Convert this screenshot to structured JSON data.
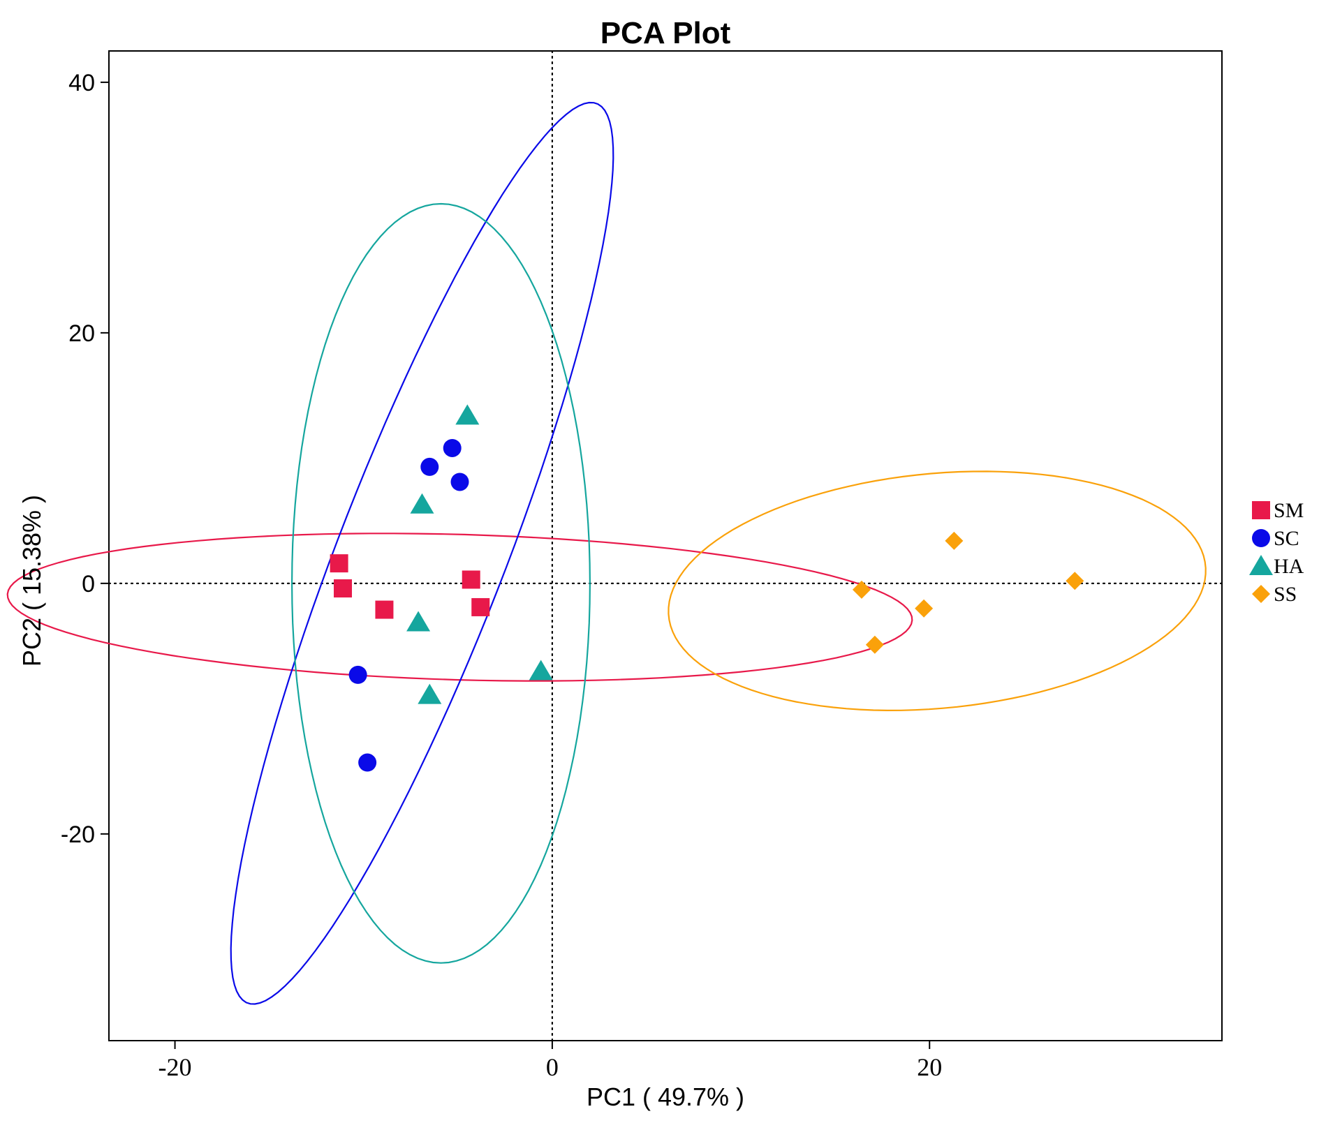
{
  "chart_data": {
    "type": "scatter",
    "title": "PCA Plot",
    "xlabel": "PC1 ( 49.7% )",
    "ylabel": "PC2 ( 15.38% )",
    "xlim": [
      -23.5,
      35.5
    ],
    "ylim": [
      -36.5,
      42.5
    ],
    "xticks": [
      -20,
      0,
      20
    ],
    "yticks": [
      40,
      20,
      0,
      -20
    ],
    "reference_lines": {
      "x": 0,
      "y": 0,
      "style": "dotted"
    },
    "grid": false,
    "legend_position": "right",
    "series": [
      {
        "name": "SM",
        "color": "#E8194A",
        "marker": "square",
        "points": [
          [
            -11.3,
            1.6
          ],
          [
            -11.1,
            -0.4
          ],
          [
            -8.9,
            -2.1
          ],
          [
            -4.3,
            0.3
          ],
          [
            -3.8,
            -1.9
          ]
        ],
        "ellipse": {
          "cx": -4.9,
          "cy": -1.9,
          "rx": 24.0,
          "ry": 5.8,
          "angle_deg": -2.5
        }
      },
      {
        "name": "SC",
        "color": "#0A0AE8",
        "marker": "circle",
        "points": [
          [
            -6.5,
            9.3
          ],
          [
            -5.3,
            10.8
          ],
          [
            -4.9,
            8.1
          ],
          [
            -10.3,
            -7.3
          ],
          [
            -9.8,
            -14.3
          ]
        ],
        "ellipse": {
          "cx": -6.9,
          "cy": 2.4,
          "rx": 37.1,
          "ry": 4.6,
          "angle_deg": 75.8
        }
      },
      {
        "name": "HA",
        "color": "#15A69E",
        "marker": "triangle",
        "points": [
          [
            -4.5,
            13.4
          ],
          [
            -6.9,
            6.3
          ],
          [
            -7.1,
            -3.1
          ],
          [
            -6.5,
            -8.9
          ],
          [
            -0.6,
            -7.0
          ]
        ],
        "ellipse": {
          "cx": -5.9,
          "cy": 0.0,
          "rx": 7.9,
          "ry": 30.3,
          "angle_deg": 0
        }
      },
      {
        "name": "SS",
        "color": "#FAA10A",
        "marker": "diamond",
        "points": [
          [
            16.4,
            -0.5
          ],
          [
            17.1,
            -4.9
          ],
          [
            19.7,
            -2.0
          ],
          [
            21.3,
            3.4
          ],
          [
            27.7,
            0.2
          ]
        ],
        "ellipse": {
          "cx": 20.4,
          "cy": -0.6,
          "rx": 14.4,
          "ry": 9.3,
          "angle_deg": 11.2
        }
      }
    ]
  }
}
